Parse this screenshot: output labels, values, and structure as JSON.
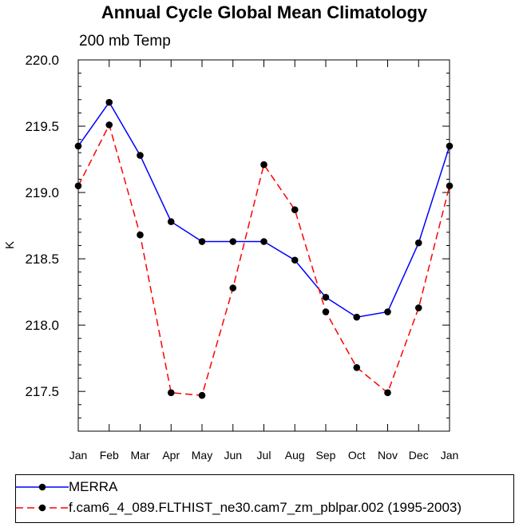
{
  "chart_data": {
    "type": "line",
    "title": "Annual Cycle Global Mean Climatology",
    "subtitle": "200 mb Temp",
    "xlabel": "",
    "ylabel": "K",
    "categories": [
      "Jan",
      "Feb",
      "Mar",
      "Apr",
      "May",
      "Jun",
      "Jul",
      "Aug",
      "Sep",
      "Oct",
      "Nov",
      "Dec",
      "Jan"
    ],
    "ylim": [
      217.2,
      220.0
    ],
    "yticks": [
      217.5,
      218.0,
      218.5,
      219.0,
      219.5,
      220.0
    ],
    "ytick_labels": [
      "217.5",
      "218.0",
      "218.5",
      "219.0",
      "219.5",
      "220.0"
    ],
    "series": [
      {
        "name": "MERRA",
        "color": "#0000ff",
        "dash": "solid",
        "marker": "filled-circle",
        "values": [
          219.35,
          219.68,
          219.28,
          218.78,
          218.63,
          218.63,
          218.63,
          218.49,
          218.21,
          218.06,
          218.1,
          218.62,
          219.35
        ]
      },
      {
        "name": "f.cam6_4_089.FLTHIST_ne30.cam7_zm_pblpar.002 (1995-2003)",
        "color": "#ff0000",
        "dash": "dashed",
        "marker": "filled-circle",
        "values": [
          219.05,
          219.51,
          218.68,
          217.49,
          217.47,
          218.28,
          219.21,
          218.87,
          218.1,
          217.68,
          217.49,
          218.13,
          219.05
        ]
      }
    ],
    "legend_position": "bottom"
  }
}
